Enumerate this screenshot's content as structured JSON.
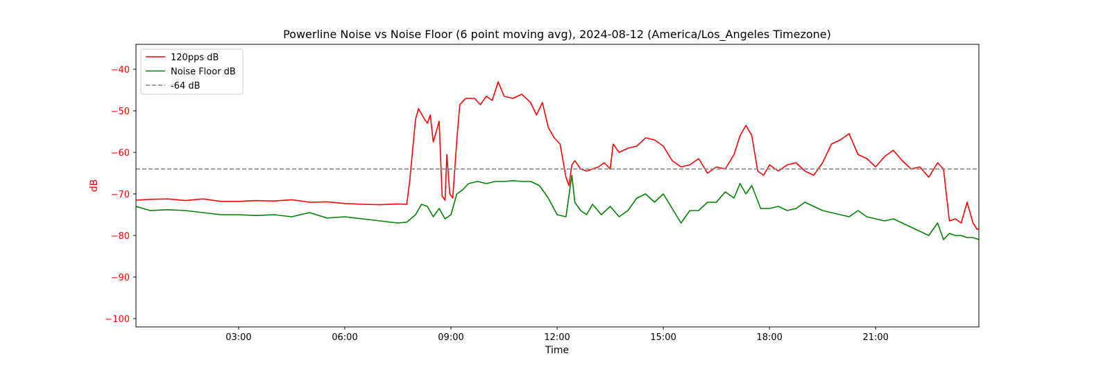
{
  "chart_data": {
    "type": "line",
    "title": "Powerline Noise vs Noise Floor (6 point moving avg), 2024-08-12 (America/Los_Angeles Timezone)",
    "xlabel": "Time",
    "ylabel": "dB",
    "xlim": [
      "00:06",
      "23:55"
    ],
    "ylim": [
      -102,
      -34
    ],
    "x_ticks": [
      "03:00",
      "06:00",
      "09:00",
      "12:00",
      "15:00",
      "18:00",
      "21:00"
    ],
    "y_ticks": [
      -40,
      -50,
      -60,
      -70,
      -80,
      -90,
      -100
    ],
    "legend_position": "upper left",
    "grid": false,
    "series": [
      {
        "name": "120pps dB",
        "color": "#ff0000",
        "style": "solid",
        "points": [
          [
            "00:06",
            -71.5
          ],
          [
            "00:30",
            -71.3
          ],
          [
            "01:00",
            -71.2
          ],
          [
            "01:30",
            -71.6
          ],
          [
            "02:00",
            -71.2
          ],
          [
            "02:30",
            -71.8
          ],
          [
            "03:00",
            -71.8
          ],
          [
            "03:30",
            -71.6
          ],
          [
            "04:00",
            -71.7
          ],
          [
            "04:30",
            -71.4
          ],
          [
            "05:00",
            -72.0
          ],
          [
            "05:30",
            -71.9
          ],
          [
            "06:00",
            -72.3
          ],
          [
            "06:30",
            -72.5
          ],
          [
            "07:00",
            -72.6
          ],
          [
            "07:30",
            -72.4
          ],
          [
            "07:45",
            -72.5
          ],
          [
            "07:50",
            -67.0
          ],
          [
            "08:00",
            -52.0
          ],
          [
            "08:05",
            -49.5
          ],
          [
            "08:15",
            -52.0
          ],
          [
            "08:20",
            -53.0
          ],
          [
            "08:25",
            -51.0
          ],
          [
            "08:30",
            -57.5
          ],
          [
            "08:35",
            -55.0
          ],
          [
            "08:40",
            -52.5
          ],
          [
            "08:45",
            -70.5
          ],
          [
            "08:50",
            -71.5
          ],
          [
            "08:53",
            -60.5
          ],
          [
            "08:58",
            -70.0
          ],
          [
            "09:03",
            -71.0
          ],
          [
            "09:10",
            -57.0
          ],
          [
            "09:15",
            -48.5
          ],
          [
            "09:25",
            -47.0
          ],
          [
            "09:40",
            -47.0
          ],
          [
            "09:50",
            -48.5
          ],
          [
            "10:00",
            -46.5
          ],
          [
            "10:10",
            -47.5
          ],
          [
            "10:20",
            -43.0
          ],
          [
            "10:30",
            -46.5
          ],
          [
            "10:45",
            -47.0
          ],
          [
            "11:00",
            -46.0
          ],
          [
            "11:15",
            -48.0
          ],
          [
            "11:25",
            -51.0
          ],
          [
            "11:35",
            -48.0
          ],
          [
            "11:45",
            -54.0
          ],
          [
            "11:55",
            -56.5
          ],
          [
            "12:05",
            -58.0
          ],
          [
            "12:15",
            -66.0
          ],
          [
            "12:20",
            -68.0
          ],
          [
            "12:25",
            -63.0
          ],
          [
            "12:30",
            -62.0
          ],
          [
            "12:40",
            -64.0
          ],
          [
            "12:50",
            -64.5
          ],
          [
            "13:00",
            -64.0
          ],
          [
            "13:10",
            -63.5
          ],
          [
            "13:20",
            -62.5
          ],
          [
            "13:30",
            -64.0
          ],
          [
            "13:35",
            -58.0
          ],
          [
            "13:45",
            -60.0
          ],
          [
            "14:00",
            -59.0
          ],
          [
            "14:15",
            -58.5
          ],
          [
            "14:30",
            -56.5
          ],
          [
            "14:45",
            -57.0
          ],
          [
            "15:00",
            -58.5
          ],
          [
            "15:15",
            -62.0
          ],
          [
            "15:30",
            -63.5
          ],
          [
            "15:45",
            -63.0
          ],
          [
            "16:00",
            -61.5
          ],
          [
            "16:15",
            -65.0
          ],
          [
            "16:30",
            -63.5
          ],
          [
            "16:45",
            -64.0
          ],
          [
            "17:00",
            -60.5
          ],
          [
            "17:10",
            -56.0
          ],
          [
            "17:20",
            -53.5
          ],
          [
            "17:30",
            -56.0
          ],
          [
            "17:40",
            -64.5
          ],
          [
            "17:50",
            -65.5
          ],
          [
            "18:00",
            -63.0
          ],
          [
            "18:15",
            -64.5
          ],
          [
            "18:30",
            -63.0
          ],
          [
            "18:45",
            -62.5
          ],
          [
            "19:00",
            -64.5
          ],
          [
            "19:15",
            -65.5
          ],
          [
            "19:30",
            -62.5
          ],
          [
            "19:45",
            -58.0
          ],
          [
            "20:00",
            -57.0
          ],
          [
            "20:15",
            -55.5
          ],
          [
            "20:30",
            -60.5
          ],
          [
            "20:45",
            -61.5
          ],
          [
            "21:00",
            -63.5
          ],
          [
            "21:15",
            -61.0
          ],
          [
            "21:30",
            -59.5
          ],
          [
            "21:45",
            -62.0
          ],
          [
            "22:00",
            -64.0
          ],
          [
            "22:15",
            -63.5
          ],
          [
            "22:30",
            -66.0
          ],
          [
            "22:45",
            -62.5
          ],
          [
            "22:55",
            -64.0
          ],
          [
            "23:05",
            -76.5
          ],
          [
            "23:15",
            -76.0
          ],
          [
            "23:25",
            -77.0
          ],
          [
            "23:35",
            -72.0
          ],
          [
            "23:45",
            -77.0
          ],
          [
            "23:52",
            -78.5
          ],
          [
            "24:02",
            -78.0
          ],
          [
            "24:05",
            -77.0
          ]
        ]
      },
      {
        "name": "Noise Floor dB",
        "color": "#008000",
        "style": "solid",
        "points": [
          [
            "00:06",
            -73.0
          ],
          [
            "00:30",
            -74.0
          ],
          [
            "01:00",
            -73.8
          ],
          [
            "01:30",
            -74.0
          ],
          [
            "02:00",
            -74.5
          ],
          [
            "02:30",
            -75.0
          ],
          [
            "03:00",
            -75.0
          ],
          [
            "03:30",
            -75.2
          ],
          [
            "04:00",
            -75.0
          ],
          [
            "04:30",
            -75.5
          ],
          [
            "05:00",
            -74.5
          ],
          [
            "05:30",
            -75.8
          ],
          [
            "06:00",
            -75.5
          ],
          [
            "06:30",
            -76.0
          ],
          [
            "07:00",
            -76.5
          ],
          [
            "07:30",
            -77.0
          ],
          [
            "07:45",
            -76.8
          ],
          [
            "08:00",
            -75.0
          ],
          [
            "08:10",
            -72.5
          ],
          [
            "08:20",
            -73.0
          ],
          [
            "08:30",
            -75.5
          ],
          [
            "08:40",
            -73.5
          ],
          [
            "08:50",
            -76.0
          ],
          [
            "09:00",
            -75.0
          ],
          [
            "09:10",
            -70.0
          ],
          [
            "09:20",
            -69.0
          ],
          [
            "09:30",
            -67.5
          ],
          [
            "09:45",
            -67.0
          ],
          [
            "10:00",
            -67.5
          ],
          [
            "10:15",
            -67.0
          ],
          [
            "10:30",
            -67.0
          ],
          [
            "10:45",
            -66.8
          ],
          [
            "11:00",
            -67.0
          ],
          [
            "11:15",
            -67.0
          ],
          [
            "11:30",
            -68.0
          ],
          [
            "11:45",
            -71.0
          ],
          [
            "12:00",
            -75.0
          ],
          [
            "12:15",
            -75.5
          ],
          [
            "12:25",
            -65.5
          ],
          [
            "12:30",
            -72.0
          ],
          [
            "12:40",
            -74.0
          ],
          [
            "12:50",
            -75.0
          ],
          [
            "13:00",
            -72.5
          ],
          [
            "13:15",
            -75.0
          ],
          [
            "13:30",
            -73.0
          ],
          [
            "13:45",
            -75.5
          ],
          [
            "14:00",
            -74.0
          ],
          [
            "14:15",
            -71.0
          ],
          [
            "14:30",
            -70.0
          ],
          [
            "14:45",
            -72.0
          ],
          [
            "15:00",
            -70.0
          ],
          [
            "15:15",
            -73.5
          ],
          [
            "15:30",
            -77.0
          ],
          [
            "15:45",
            -74.0
          ],
          [
            "16:00",
            -74.0
          ],
          [
            "16:15",
            -72.0
          ],
          [
            "16:30",
            -72.0
          ],
          [
            "16:45",
            -69.5
          ],
          [
            "17:00",
            -71.0
          ],
          [
            "17:10",
            -67.5
          ],
          [
            "17:20",
            -70.0
          ],
          [
            "17:30",
            -68.0
          ],
          [
            "17:45",
            -73.5
          ],
          [
            "18:00",
            -73.5
          ],
          [
            "18:15",
            -73.0
          ],
          [
            "18:30",
            -74.0
          ],
          [
            "18:45",
            -73.5
          ],
          [
            "19:00",
            -72.0
          ],
          [
            "19:15",
            -73.0
          ],
          [
            "19:30",
            -74.0
          ],
          [
            "19:45",
            -74.5
          ],
          [
            "20:00",
            -75.0
          ],
          [
            "20:15",
            -75.5
          ],
          [
            "20:30",
            -74.0
          ],
          [
            "20:45",
            -75.5
          ],
          [
            "21:00",
            -76.0
          ],
          [
            "21:15",
            -76.5
          ],
          [
            "21:30",
            -76.0
          ],
          [
            "21:45",
            -77.0
          ],
          [
            "22:00",
            -78.0
          ],
          [
            "22:15",
            -79.0
          ],
          [
            "22:30",
            -80.0
          ],
          [
            "22:45",
            -77.0
          ],
          [
            "22:55",
            -81.0
          ],
          [
            "23:05",
            -79.5
          ],
          [
            "23:15",
            -80.0
          ],
          [
            "23:25",
            -80.0
          ],
          [
            "23:35",
            -80.5
          ],
          [
            "23:45",
            -80.5
          ],
          [
            "23:55",
            -81.0
          ],
          [
            "24:05",
            -81.0
          ]
        ]
      },
      {
        "name": "-64 dB",
        "color": "#808080",
        "style": "dashed",
        "points": [
          [
            "00:06",
            -64
          ],
          [
            "24:05",
            -64
          ]
        ]
      }
    ]
  }
}
